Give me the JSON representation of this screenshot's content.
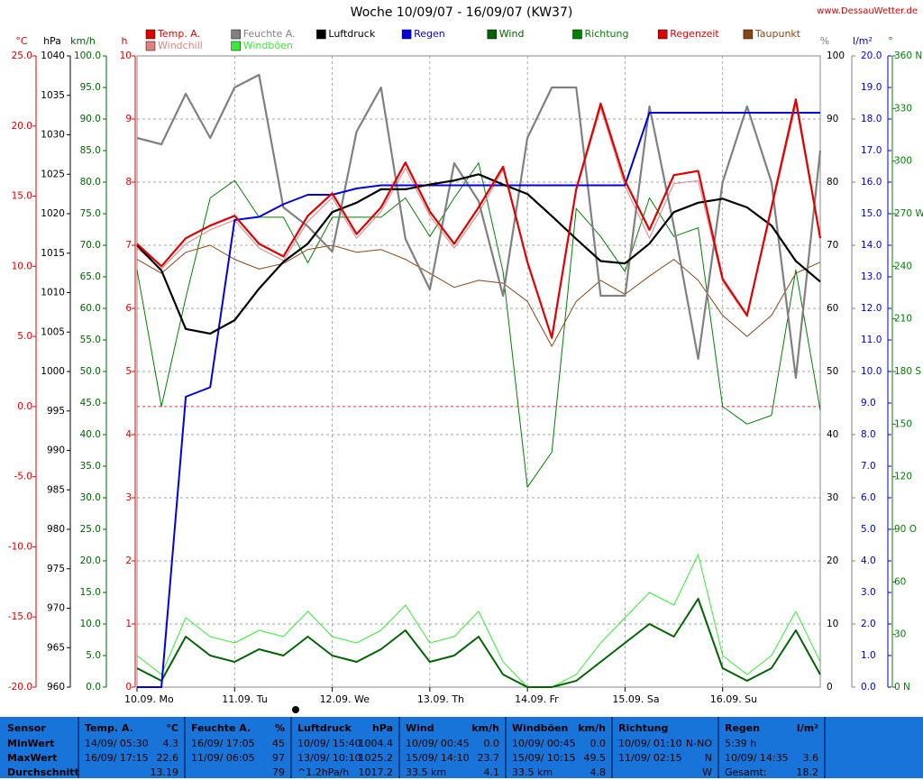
{
  "chart_data": {
    "type": "line",
    "title": "Woche 10/09/07 - 16/09/07 (KW37)",
    "source": "www.DessauWetter.de",
    "categories": [
      "10.09. Mo",
      null,
      null,
      null,
      "11.09. Tu",
      null,
      null,
      null,
      "12.09. We",
      null,
      null,
      null,
      "13.09. Th",
      null,
      null,
      null,
      "14.09. Fr",
      null,
      null,
      null,
      "15.09. Sa",
      null,
      null,
      null,
      "16.09. Su",
      null,
      null,
      null,
      null
    ],
    "grid": true,
    "axes": {
      "temp": {
        "title": "°C",
        "color": "#e00000",
        "lim": [
          -20,
          25
        ],
        "ticks": [
          {
            "value": 25,
            "label": "25.0"
          },
          {
            "value": 20,
            "label": "20.0"
          },
          {
            "value": 15,
            "label": "15.0"
          },
          {
            "value": 10,
            "label": "10.0"
          },
          {
            "value": 5,
            "label": "5.0"
          },
          {
            "value": 0,
            "label": "0.0"
          },
          {
            "value": -5,
            "label": "-5.0"
          },
          {
            "value": -10,
            "label": "-10.0"
          },
          {
            "value": -15,
            "label": "-15.0"
          },
          {
            "value": -20,
            "label": "-20.0"
          }
        ]
      },
      "press": {
        "title": "hPa",
        "color": "#000000",
        "lim": [
          960,
          1040
        ],
        "ticks": [
          1040,
          1035,
          1030,
          1025,
          1020,
          1015,
          1010,
          1005,
          1000,
          995,
          990,
          985,
          980,
          975,
          970,
          965,
          960
        ]
      },
      "speed": {
        "title": "km/h",
        "color": "#006400",
        "lim": [
          0,
          100
        ],
        "ticks": [
          {
            "value": 100,
            "label": "100.0"
          },
          {
            "value": 95,
            "label": "95.0"
          },
          {
            "value": 90,
            "label": "90.0"
          },
          {
            "value": 85,
            "label": "85.0"
          },
          {
            "value": 80,
            "label": "80.0"
          },
          {
            "value": 75,
            "label": "75.0"
          },
          {
            "value": 70,
            "label": "70.0"
          },
          {
            "value": 65,
            "label": "65.0"
          },
          {
            "value": 60,
            "label": "60.0"
          },
          {
            "value": 55,
            "label": "55.0"
          },
          {
            "value": 50,
            "label": "50.0"
          },
          {
            "value": 45,
            "label": "45.0"
          },
          {
            "value": 40,
            "label": "40.0"
          },
          {
            "value": 35,
            "label": "35.0"
          },
          {
            "value": 30,
            "label": "30.0"
          },
          {
            "value": 25,
            "label": "25.0"
          },
          {
            "value": 20,
            "label": "20.0"
          },
          {
            "value": 15,
            "label": "15.0"
          },
          {
            "value": 10,
            "label": "10.0"
          },
          {
            "value": 5,
            "label": "5.0"
          },
          {
            "value": 0,
            "label": "0.0"
          }
        ]
      },
      "hours": {
        "title": "h",
        "color": "#e00000",
        "lim": [
          0,
          10
        ],
        "ticks": [
          10,
          9,
          8,
          7,
          6,
          5,
          4,
          3,
          2,
          1,
          0
        ]
      },
      "hum": {
        "title": "%",
        "color": "#808080",
        "lim": [
          0,
          100
        ],
        "ticks": [
          100,
          90,
          80,
          70,
          60,
          50,
          40,
          30,
          20,
          10,
          0
        ]
      },
      "rain": {
        "title": "l/m²",
        "color": "#0000d0",
        "lim": [
          0,
          20
        ],
        "ticks": [
          {
            "value": 20,
            "label": "20.0"
          },
          {
            "value": 19,
            "label": "19.0"
          },
          {
            "value": 18,
            "label": "18.0"
          },
          {
            "value": 17,
            "label": "17.0"
          },
          {
            "value": 16,
            "label": "16.0"
          },
          {
            "value": 15,
            "label": "15.0"
          },
          {
            "value": 14,
            "label": "14.0"
          },
          {
            "value": 13,
            "label": "13.0"
          },
          {
            "value": 12,
            "label": "12.0"
          },
          {
            "value": 11,
            "label": "11.0"
          },
          {
            "value": 10,
            "label": "10.0"
          },
          {
            "value": 9,
            "label": "9.0"
          },
          {
            "value": 8,
            "label": "8.0"
          },
          {
            "value": 7,
            "label": "7.0"
          },
          {
            "value": 6,
            "label": "6.0"
          },
          {
            "value": 5,
            "label": "5.0"
          },
          {
            "value": 4,
            "label": "4.0"
          },
          {
            "value": 3,
            "label": "3.0"
          },
          {
            "value": 2,
            "label": "2.0"
          },
          {
            "value": 1,
            "label": "1.0"
          },
          {
            "value": 0,
            "label": "0.0"
          }
        ]
      },
      "deg": {
        "title": "°",
        "color": "#008000",
        "lim": [
          0,
          360
        ],
        "ticks": [
          {
            "value": 360,
            "label": "360 N"
          },
          330,
          300,
          {
            "value": 270,
            "label": "270 W"
          },
          240,
          210,
          {
            "value": 180,
            "label": "180 S"
          },
          150,
          120,
          {
            "value": 90,
            "label": "90 O"
          },
          60,
          30,
          {
            "value": 0,
            "label": "0 N"
          }
        ]
      }
    },
    "series": [
      {
        "name": "Temp. A.",
        "color": "#e00000",
        "axis": "temp",
        "values": [
          11.6,
          10.0,
          12.0,
          12.9,
          13.6,
          11.6,
          10.7,
          13.6,
          15.2,
          12.3,
          14.2,
          17.4,
          13.9,
          11.6,
          14.2,
          17.1,
          10.3,
          4.9,
          15.5,
          21.6,
          16.1,
          12.6,
          16.5,
          16.8,
          9.1,
          6.5,
          14.2,
          21.9,
          12.0
        ]
      },
      {
        "name": "Feuchte A.",
        "color": "#808080",
        "axis": "hum",
        "values": [
          87,
          86,
          94,
          87,
          95,
          97,
          76,
          73,
          69,
          88,
          95,
          71,
          63,
          83,
          77,
          62,
          87,
          95,
          95,
          62,
          62,
          92,
          73,
          52,
          80,
          92,
          80,
          49,
          85
        ]
      },
      {
        "name": "Luftdruck",
        "color": "#000000",
        "axis": "press",
        "values": [
          1016,
          1012.8,
          1005.4,
          1004.8,
          1006.5,
          1010.5,
          1013.9,
          1016.2,
          1020.2,
          1021.4,
          1023.1,
          1023.1,
          1023.7,
          1024.2,
          1025.0,
          1023.7,
          1022.5,
          1019.7,
          1016.8,
          1014,
          1013.7,
          1016.2,
          1020.2,
          1021.4,
          1021.9,
          1020.8,
          1018.5,
          1014,
          1011.4
        ]
      },
      {
        "name": "Regen",
        "color": "#0000e0",
        "axis": "rain",
        "values": [
          0,
          0,
          9.2,
          9.5,
          14.8,
          14.9,
          15.3,
          15.6,
          15.6,
          15.8,
          15.9,
          15.9,
          15.9,
          15.9,
          15.9,
          15.9,
          15.9,
          15.9,
          15.9,
          15.9,
          15.9,
          18.2,
          18.2,
          18.2,
          18.2,
          18.2,
          18.2,
          18.2,
          18.2
        ]
      },
      {
        "name": "Wind",
        "color": "#006400",
        "axis": "speed",
        "values": [
          3,
          1,
          8,
          5,
          4,
          6,
          5,
          8,
          5,
          4,
          6,
          9,
          4,
          5,
          8,
          2,
          0,
          0,
          1,
          4,
          7,
          10,
          8,
          14,
          3,
          1,
          3,
          9,
          2
        ]
      },
      {
        "name": "Richtung",
        "color": "#008000",
        "axis": "deg",
        "values": [
          238,
          160,
          222,
          279,
          289,
          268,
          268,
          242,
          268,
          268,
          268,
          279,
          257,
          279,
          299,
          237,
          114,
          134,
          273,
          257,
          237,
          279,
          257,
          262,
          160,
          150,
          155,
          238,
          158
        ]
      },
      {
        "name": "Regenzeit",
        "color": "#e00000",
        "axis": "hours",
        "values": [
          null,
          null,
          null,
          null,
          null,
          null,
          null,
          null,
          null,
          null,
          null,
          null,
          null,
          null,
          null,
          null,
          null,
          null,
          null,
          null,
          null,
          null,
          null,
          null,
          null,
          null,
          null,
          null,
          null
        ]
      },
      {
        "name": "Taupunkt",
        "color": "#8b4513",
        "axis": "temp",
        "values": [
          10.5,
          9.5,
          11,
          11.5,
          10.5,
          9.8,
          10.2,
          11.2,
          11.5,
          11,
          11.2,
          10.5,
          9.5,
          8.5,
          9,
          8.8,
          7.5,
          4.3,
          7.5,
          9,
          8,
          9.3,
          10.5,
          9,
          6.5,
          5,
          6.5,
          9.5,
          10.3
        ]
      },
      {
        "name": "Windchill",
        "color": "#e08080",
        "axis": "temp",
        "values": [
          11.3,
          9.8,
          11.6,
          12.6,
          13.3,
          11.3,
          10.4,
          13.2,
          14.9,
          12.0,
          13.9,
          17.0,
          13.6,
          11.3,
          13.8,
          16.9,
          10.3,
          4.9,
          15.4,
          21.3,
          15.7,
          12.0,
          15.9,
          16.1,
          8.9,
          6.4,
          14.0,
          21.5,
          11.9
        ]
      },
      {
        "name": "Windböen",
        "color": "#33ee33",
        "axis": "speed",
        "values": [
          5,
          2,
          11,
          8,
          7,
          9,
          8,
          12,
          8,
          7,
          9,
          13,
          7,
          8,
          12,
          4,
          0,
          0,
          2,
          7,
          11,
          15,
          13,
          21,
          5,
          2,
          5,
          12,
          4
        ]
      }
    ]
  },
  "table": {
    "sensor_label": "Sensor",
    "row_labels": [
      "MinWert",
      "MaxWert",
      "Durchschnitt"
    ],
    "columns": [
      {
        "name": "Temp. A.",
        "unit": "°C",
        "rows": [
          [
            "14/09/ 05:30",
            "4.3"
          ],
          [
            "16/09/ 17:15",
            "22.6"
          ],
          [
            null,
            "13.19"
          ]
        ]
      },
      {
        "name": "Feuchte A.",
        "unit": "%",
        "rows": [
          [
            "16/09/ 17:05",
            "45"
          ],
          [
            "11/09/ 06:05",
            "97"
          ],
          [
            null,
            "79"
          ]
        ]
      },
      {
        "name": "Luftdruck",
        "unit": "hPa",
        "rows": [
          [
            "10/09/ 15:40",
            "1004.4"
          ],
          [
            "13/09/ 10:10",
            "1025.2"
          ],
          [
            "^1.2hPa/h",
            "1017.2"
          ]
        ]
      },
      {
        "name": "Wind",
        "unit": "km/h",
        "rows": [
          [
            "10/09/ 00:45",
            "0.0"
          ],
          [
            "15/09/ 14:10",
            "23.7"
          ],
          [
            "33.5 km",
            "4.1"
          ]
        ]
      },
      {
        "name": "Windböen",
        "unit": "km/h",
        "rows": [
          [
            "10/09/ 00:45",
            "0.0"
          ],
          [
            "15/09/ 10:15",
            "49.5"
          ],
          [
            "33.5 km",
            "4.8"
          ]
        ]
      },
      {
        "name": "Richtung",
        "unit": null,
        "rows": [
          [
            "10/09/ 01:10",
            "N-NO"
          ],
          [
            "11/09/ 02:15",
            "N"
          ],
          [
            null,
            "W"
          ]
        ]
      },
      {
        "name": "Regen",
        "unit": "l/m²",
        "rows": [
          [
            "5:39 h",
            null
          ],
          [
            "10/09/ 14:35",
            "3.6"
          ],
          [
            "Gesamt:",
            "18.2"
          ]
        ]
      }
    ]
  }
}
